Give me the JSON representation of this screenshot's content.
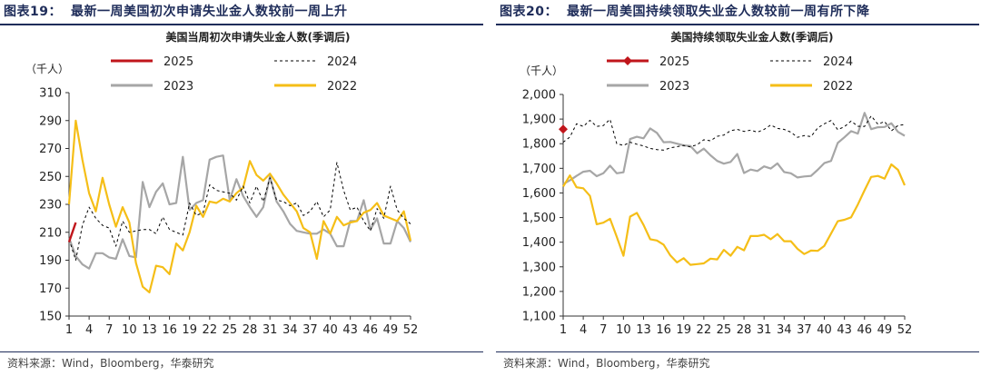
{
  "panels": [
    {
      "figure_label": "图表19：",
      "figure_title": "最新一周美国初次申请失业金人数较前一周上升",
      "source": "资料来源：Wind，Bloomberg，华泰研究"
    },
    {
      "figure_label": "图表20：",
      "figure_title": "最新一周美国持续领取失业金人数较前一周有所下降",
      "source": "资料来源：Wind，Bloomberg，华泰研究"
    }
  ],
  "colors": {
    "2025": "#c0151b",
    "2024": "#000000",
    "2023": "#a6a6a6",
    "2022": "#f5be17",
    "accent": "#1f2d5a"
  },
  "chart_data": [
    {
      "type": "line",
      "title": "美国当周初次申请失业金人数(季调后)",
      "unit": "（千人）",
      "xlabel": "",
      "ylabel": "",
      "ylim": [
        150,
        310
      ],
      "y_ticks": [
        150,
        170,
        190,
        210,
        230,
        250,
        270,
        290,
        310
      ],
      "y_tick_labels": [
        "150",
        "170",
        "190",
        "210",
        "230",
        "250",
        "270",
        "290",
        "310"
      ],
      "xlim": [
        1,
        52
      ],
      "x_ticks": [
        1,
        4,
        7,
        10,
        13,
        16,
        19,
        22,
        25,
        28,
        31,
        34,
        37,
        40,
        43,
        46,
        49,
        52
      ],
      "x_tick_labels": [
        "1",
        "4",
        "7",
        "10",
        "13",
        "16",
        "19",
        "22",
        "25",
        "28",
        "31",
        "34",
        "37",
        "40",
        "43",
        "46",
        "49",
        "52"
      ],
      "legend_position": "top",
      "series": [
        {
          "name": "2025",
          "style": "solid",
          "marker": false,
          "values": [
            203,
            217
          ]
        },
        {
          "name": "2024",
          "style": "dashed",
          "marker": false,
          "values": [
            205,
            190,
            215,
            228,
            220,
            215,
            213,
            200,
            218,
            210,
            211,
            212,
            212,
            209,
            221,
            212,
            210,
            208,
            231,
            222,
            224,
            244,
            240,
            239,
            238,
            233,
            243,
            231,
            243,
            232,
            249,
            233,
            232,
            229,
            231,
            222,
            225,
            232,
            221,
            226,
            260,
            240,
            226,
            228,
            218,
            211,
            227,
            220,
            243,
            226,
            220,
            216
          ]
        },
        {
          "name": "2023",
          "style": "solid",
          "marker": false,
          "values": [
            206,
            193,
            187,
            184,
            195,
            195,
            192,
            191,
            205,
            193,
            192,
            246,
            228,
            239,
            245,
            230,
            231,
            264,
            226,
            231,
            233,
            262,
            264,
            265,
            233,
            248,
            236,
            228,
            221,
            228,
            250,
            232,
            225,
            216,
            211,
            210,
            209,
            209,
            212,
            209,
            200,
            200,
            218,
            218,
            233,
            212,
            220,
            202,
            202,
            218,
            213,
            203
          ]
        },
        {
          "name": "2022",
          "style": "solid",
          "marker": false,
          "values": [
            230,
            290,
            262,
            238,
            225,
            249,
            230,
            214,
            228,
            217,
            188,
            171,
            167,
            186,
            185,
            180,
            202,
            197,
            210,
            229,
            221,
            232,
            231,
            234,
            232,
            238,
            242,
            261,
            251,
            247,
            252,
            245,
            237,
            231,
            225,
            213,
            210,
            191,
            218,
            209,
            221,
            215,
            217,
            218,
            224,
            226,
            231,
            222,
            220,
            218,
            225,
            204
          ]
        }
      ]
    },
    {
      "type": "line",
      "title": "美国持续领取失业金人数(季调后)",
      "unit": "（千人）",
      "xlabel": "",
      "ylabel": "",
      "ylim": [
        1100,
        2000
      ],
      "y_ticks": [
        1100,
        1200,
        1300,
        1400,
        1500,
        1600,
        1700,
        1800,
        1900,
        2000
      ],
      "y_tick_labels": [
        "1,100",
        "1,200",
        "1,300",
        "1,400",
        "1,500",
        "1,600",
        "1,700",
        "1,800",
        "1,900",
        "2,000"
      ],
      "xlim": [
        1,
        52
      ],
      "x_ticks": [
        1,
        4,
        7,
        10,
        13,
        16,
        19,
        22,
        25,
        28,
        31,
        34,
        37,
        40,
        43,
        46,
        49,
        52
      ],
      "x_tick_labels": [
        "1",
        "4",
        "7",
        "10",
        "13",
        "16",
        "19",
        "22",
        "25",
        "28",
        "31",
        "34",
        "37",
        "40",
        "43",
        "46",
        "49",
        "52"
      ],
      "legend_position": "top",
      "series": [
        {
          "name": "2025",
          "style": "solid",
          "marker": true,
          "values": [
            1859
          ]
        },
        {
          "name": "2024",
          "style": "dashed",
          "marker": false,
          "values": [
            1806,
            1827,
            1881,
            1870,
            1895,
            1870,
            1874,
            1899,
            1800,
            1793,
            1806,
            1798,
            1791,
            1781,
            1776,
            1774,
            1783,
            1788,
            1793,
            1787,
            1796,
            1816,
            1812,
            1830,
            1835,
            1853,
            1858,
            1850,
            1855,
            1847,
            1858,
            1876,
            1862,
            1858,
            1847,
            1826,
            1833,
            1829,
            1864,
            1881,
            1894,
            1857,
            1869,
            1892,
            1871,
            1870,
            1913,
            1879,
            1890,
            1852,
            1874,
            1878
          ]
        },
        {
          "name": "2023",
          "style": "solid",
          "marker": false,
          "values": [
            1636,
            1651,
            1669,
            1686,
            1690,
            1668,
            1680,
            1711,
            1680,
            1684,
            1819,
            1828,
            1822,
            1862,
            1844,
            1806,
            1807,
            1800,
            1793,
            1791,
            1761,
            1780,
            1753,
            1730,
            1719,
            1726,
            1758,
            1681,
            1695,
            1689,
            1708,
            1699,
            1720,
            1685,
            1680,
            1663,
            1667,
            1669,
            1694,
            1721,
            1730,
            1803,
            1826,
            1851,
            1841,
            1925,
            1859,
            1867,
            1868,
            1883,
            1848,
            1832
          ]
        },
        {
          "name": "2022",
          "style": "solid",
          "marker": false,
          "values": [
            1626,
            1671,
            1623,
            1619,
            1588,
            1473,
            1479,
            1495,
            1422,
            1345,
            1504,
            1519,
            1470,
            1412,
            1407,
            1390,
            1346,
            1318,
            1335,
            1308,
            1311,
            1314,
            1333,
            1330,
            1369,
            1345,
            1381,
            1367,
            1425,
            1425,
            1430,
            1412,
            1433,
            1404,
            1404,
            1373,
            1352,
            1366,
            1365,
            1385,
            1435,
            1485,
            1491,
            1501,
            1553,
            1611,
            1665,
            1669,
            1658,
            1716,
            1694,
            1631
          ]
        }
      ]
    }
  ]
}
